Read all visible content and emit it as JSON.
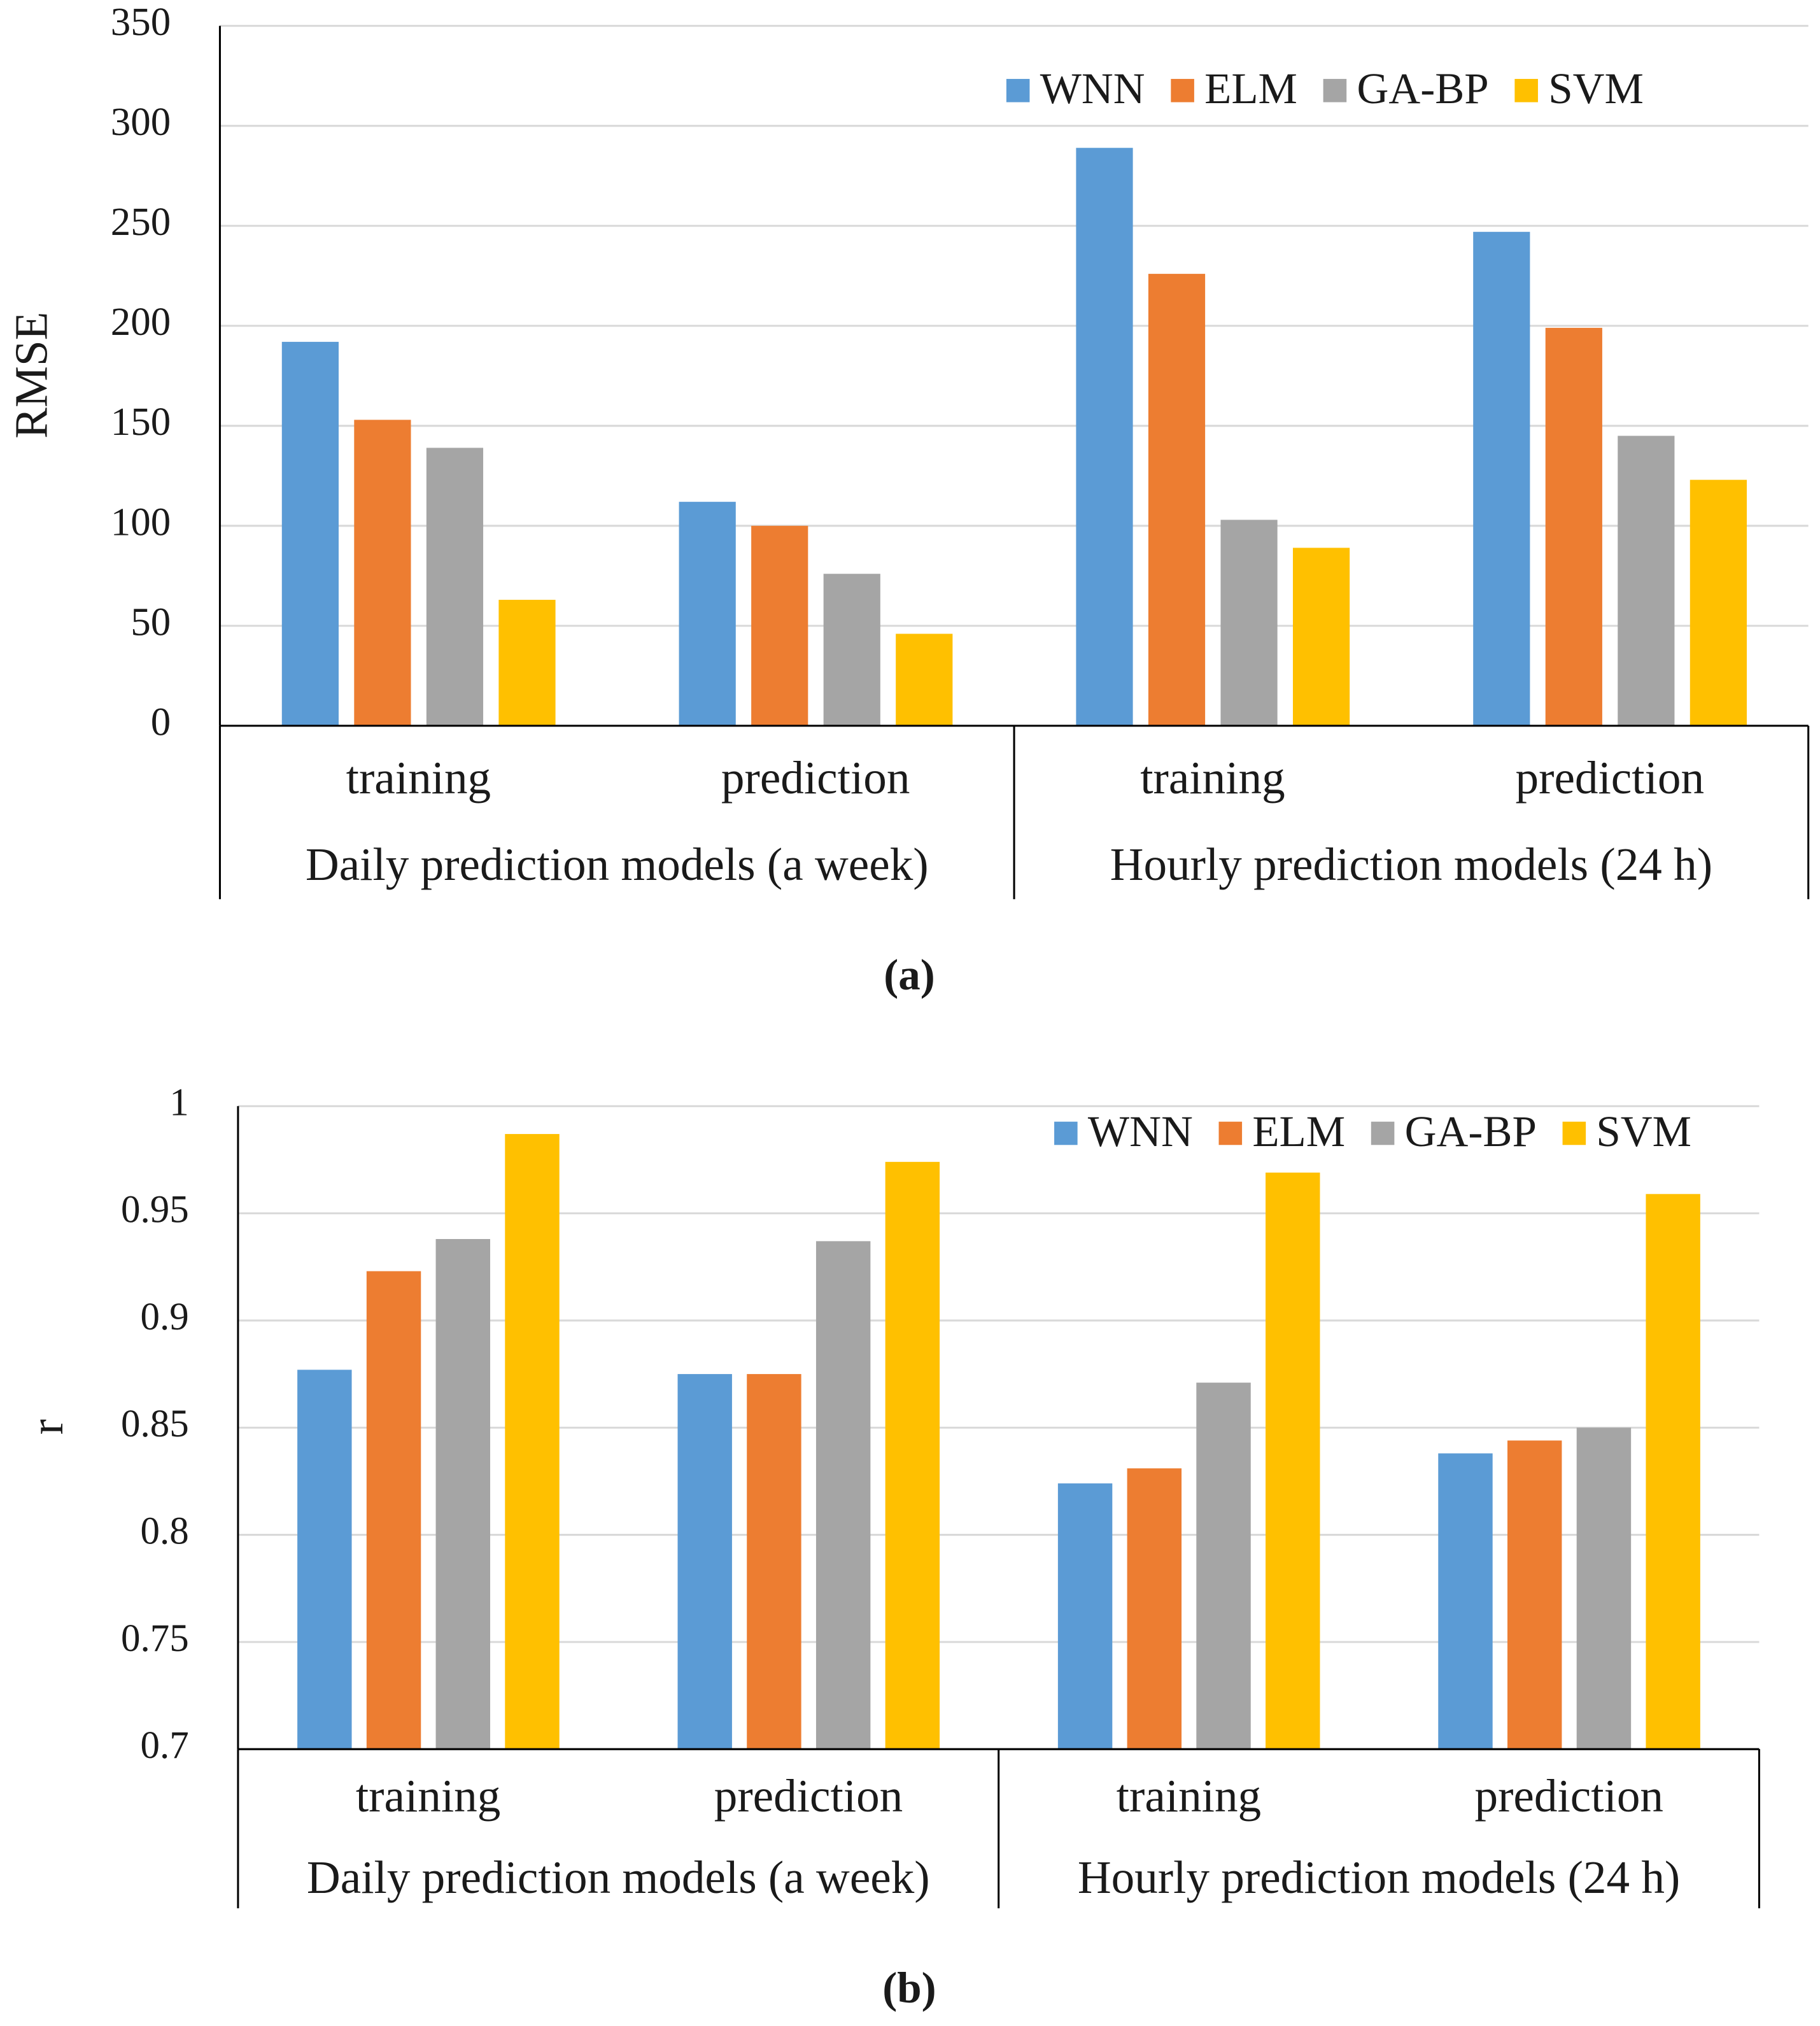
{
  "chart_data": [
    {
      "type": "bar",
      "caption": "(a)",
      "y_label": "RMSE",
      "groups": [
        {
          "name": "Daily prediction models (a week)",
          "categories": [
            "training",
            "prediction"
          ]
        },
        {
          "name": "Hourly prediction models (24 h)",
          "categories": [
            "training",
            "prediction"
          ]
        }
      ],
      "series": [
        {
          "name": "WNN",
          "color": "#5b9bd5",
          "values": [
            192,
            112,
            289,
            247
          ]
        },
        {
          "name": "ELM",
          "color": "#ed7d31",
          "values": [
            153,
            100,
            226,
            199
          ]
        },
        {
          "name": "GA-BP",
          "color": "#a5a5a5",
          "values": [
            139,
            76,
            103,
            145
          ]
        },
        {
          "name": "SVM",
          "color": "#ffc000",
          "values": [
            63,
            46,
            89,
            123
          ]
        }
      ],
      "ylim": [
        0,
        350
      ],
      "yticks": [
        0,
        50,
        100,
        150,
        200,
        250,
        300,
        350
      ],
      "grid": true,
      "legend": "top-right"
    },
    {
      "type": "bar",
      "caption": "(b)",
      "y_label": "r",
      "groups": [
        {
          "name": "Daily prediction models (a week)",
          "categories": [
            "training",
            "prediction"
          ]
        },
        {
          "name": "Hourly prediction models (24 h)",
          "categories": [
            "training",
            "prediction"
          ]
        }
      ],
      "series": [
        {
          "name": "WNN",
          "color": "#5b9bd5",
          "values": [
            0.877,
            0.875,
            0.824,
            0.838
          ]
        },
        {
          "name": "ELM",
          "color": "#ed7d31",
          "values": [
            0.923,
            0.875,
            0.831,
            0.844
          ]
        },
        {
          "name": "GA-BP",
          "color": "#a5a5a5",
          "values": [
            0.938,
            0.937,
            0.871,
            0.85
          ]
        },
        {
          "name": "SVM",
          "color": "#ffc000",
          "values": [
            0.987,
            0.974,
            0.969,
            0.959
          ]
        }
      ],
      "ylim": [
        0.7,
        1
      ],
      "yticks": [
        0.7,
        0.75,
        0.8,
        0.85,
        0.9,
        0.95,
        1
      ],
      "grid": true,
      "legend": "top-right"
    }
  ]
}
